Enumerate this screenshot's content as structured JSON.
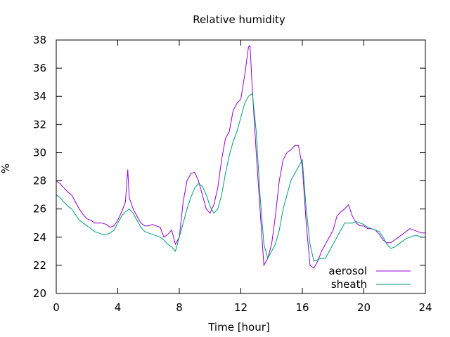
{
  "chart_data": {
    "type": "line",
    "title": "Relative humidity",
    "xlabel": "Time [hour]",
    "ylabel": "%",
    "xlim": [
      0,
      24
    ],
    "ylim": [
      20,
      38
    ],
    "xticks": [
      0,
      4,
      8,
      12,
      16,
      20,
      24
    ],
    "yticks": [
      20,
      22,
      24,
      26,
      28,
      30,
      32,
      34,
      36,
      38
    ],
    "grid": false,
    "legend_position": "bottom-right",
    "series": [
      {
        "name": "aerosol",
        "color": "#9400d3",
        "x": [
          0,
          0.25,
          0.5,
          0.75,
          1,
          1.25,
          1.5,
          1.75,
          2,
          2.25,
          2.5,
          2.75,
          3,
          3.25,
          3.5,
          3.75,
          4,
          4.25,
          4.5,
          4.65,
          4.75,
          5,
          5.25,
          5.5,
          5.75,
          6,
          6.25,
          6.5,
          6.75,
          7,
          7.25,
          7.5,
          7.75,
          8,
          8.25,
          8.5,
          8.75,
          9,
          9.25,
          9.5,
          9.75,
          10,
          10.25,
          10.5,
          10.75,
          11,
          11.25,
          11.5,
          11.75,
          12,
          12.25,
          12.5,
          12.6,
          12.75,
          13,
          13.25,
          13.5,
          13.75,
          14,
          14.25,
          14.5,
          14.75,
          15,
          15.25,
          15.5,
          15.75,
          16,
          16.25,
          16.5,
          16.75,
          17,
          17.25,
          17.5,
          17.75,
          18,
          18.25,
          18.5,
          18.75,
          19,
          19.25,
          19.5,
          19.75,
          20,
          20.25,
          20.5,
          20.75,
          21,
          21.25,
          21.5,
          21.75,
          22,
          22.25,
          22.5,
          22.75,
          23,
          23.25,
          23.5,
          23.75,
          24
        ],
        "y": [
          28.0,
          27.8,
          27.5,
          27.2,
          27.0,
          26.5,
          26.0,
          25.6,
          25.3,
          25.2,
          25.0,
          25.0,
          25.0,
          24.9,
          24.7,
          24.8,
          25.2,
          25.8,
          26.5,
          28.8,
          26.8,
          26.0,
          25.5,
          25.0,
          24.8,
          24.8,
          24.9,
          24.8,
          24.7,
          24.0,
          24.2,
          24.5,
          23.5,
          24.0,
          26.5,
          28.0,
          28.5,
          28.6,
          28.0,
          27.0,
          26.0,
          25.7,
          26.3,
          27.5,
          29.5,
          31.0,
          31.5,
          33.0,
          33.5,
          33.8,
          35.5,
          37.5,
          37.6,
          34.5,
          30.0,
          26.0,
          22.0,
          22.5,
          23.5,
          25.5,
          28.0,
          29.5,
          30.0,
          30.2,
          30.5,
          30.5,
          29.0,
          25.0,
          22.0,
          21.8,
          22.3,
          23.0,
          23.5,
          24.0,
          24.5,
          25.5,
          25.8,
          26.0,
          26.3,
          25.5,
          25.0,
          24.8,
          24.8,
          24.6,
          24.6,
          24.5,
          24.2,
          23.8,
          23.6,
          23.6,
          23.8,
          24.0,
          24.2,
          24.4,
          24.6,
          24.5,
          24.4,
          24.3,
          24.3
        ]
      },
      {
        "name": "sheath",
        "color": "#009e73",
        "x": [
          0,
          0.25,
          0.5,
          0.75,
          1,
          1.25,
          1.5,
          1.75,
          2,
          2.25,
          2.5,
          2.75,
          3,
          3.25,
          3.5,
          3.75,
          4,
          4.25,
          4.5,
          4.75,
          5,
          5.25,
          5.5,
          5.75,
          6,
          6.25,
          6.5,
          6.75,
          7,
          7.25,
          7.5,
          7.75,
          8,
          8.25,
          8.5,
          8.75,
          9,
          9.25,
          9.5,
          9.75,
          10,
          10.25,
          10.5,
          10.75,
          11,
          11.25,
          11.5,
          11.75,
          12,
          12.25,
          12.5,
          12.75,
          13,
          13.25,
          13.5,
          13.75,
          14,
          14.25,
          14.5,
          14.75,
          15,
          15.25,
          15.5,
          15.75,
          16,
          16.25,
          16.5,
          16.75,
          17,
          17.25,
          17.5,
          17.75,
          18,
          18.25,
          18.5,
          18.75,
          19,
          19.25,
          19.5,
          19.75,
          20,
          20.25,
          20.5,
          20.75,
          21,
          21.25,
          21.5,
          21.75,
          22,
          22.25,
          22.5,
          22.75,
          23,
          23.25,
          23.5,
          23.75,
          24
        ],
        "y": [
          27.0,
          26.8,
          26.5,
          26.2,
          26.0,
          25.6,
          25.2,
          25.0,
          24.8,
          24.6,
          24.4,
          24.3,
          24.2,
          24.2,
          24.3,
          24.5,
          25.0,
          25.5,
          25.8,
          26.0,
          25.7,
          25.2,
          24.7,
          24.4,
          24.3,
          24.2,
          24.1,
          24.0,
          23.8,
          23.5,
          23.3,
          23.0,
          24.0,
          25.0,
          26.0,
          26.8,
          27.5,
          27.8,
          27.6,
          27.0,
          26.2,
          25.7,
          26.0,
          27.0,
          28.5,
          29.8,
          30.8,
          31.5,
          32.5,
          33.5,
          34.0,
          34.2,
          31.5,
          27.0,
          23.5,
          22.5,
          23.0,
          23.5,
          24.5,
          26.0,
          27.0,
          28.0,
          28.5,
          29.0,
          29.5,
          26.0,
          23.5,
          22.3,
          22.4,
          22.5,
          22.5,
          23.0,
          23.5,
          24.0,
          24.5,
          25.0,
          25.0,
          25.0,
          25.1,
          25.0,
          24.9,
          24.7,
          24.6,
          24.5,
          24.4,
          24.0,
          23.5,
          23.2,
          23.3,
          23.5,
          23.7,
          23.9,
          24.0,
          24.1,
          24.1,
          24.0,
          24.0
        ]
      }
    ]
  }
}
